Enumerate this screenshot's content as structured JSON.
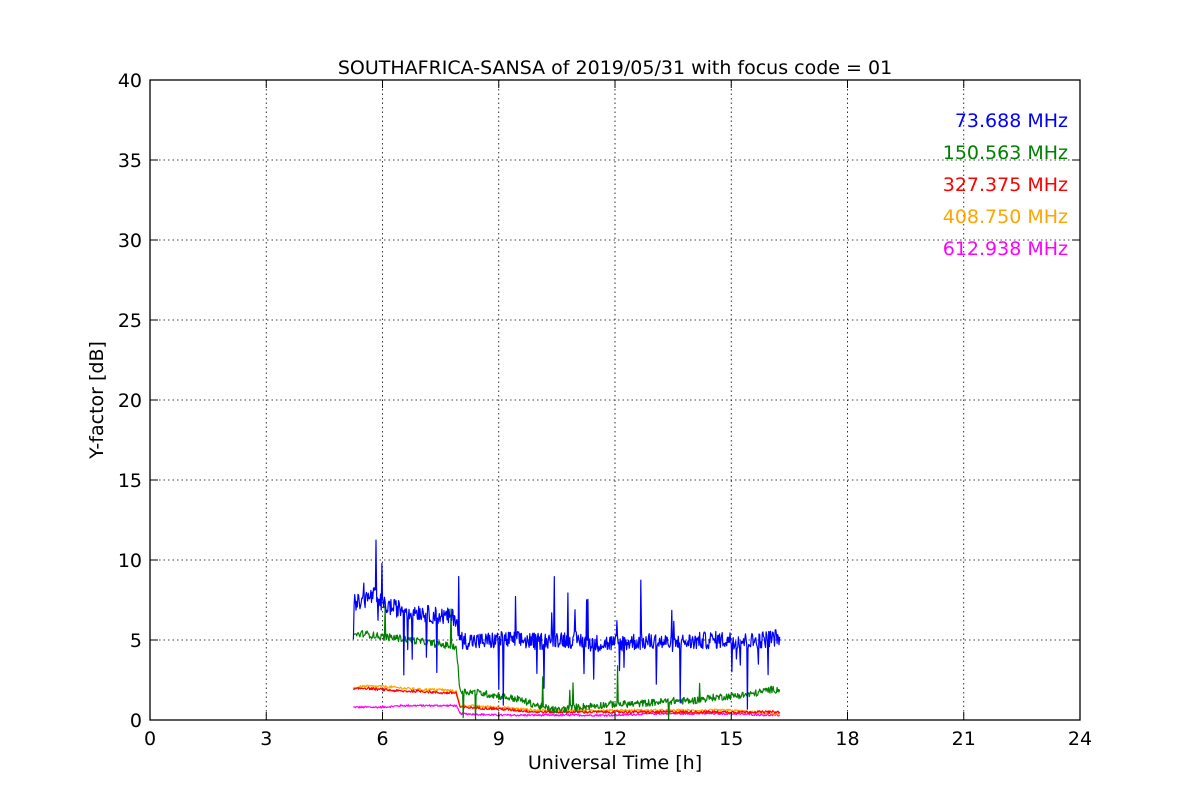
{
  "chart_data": {
    "type": "line",
    "title": "SOUTHAFRICA-SANSA of 2019/05/31 with focus code = 01",
    "xlabel": "Universal Time [h]",
    "ylabel": "Y-factor [dB]",
    "xlim": [
      0,
      24
    ],
    "ylim": [
      0,
      40
    ],
    "xticks": [
      0,
      3,
      6,
      9,
      12,
      15,
      18,
      21,
      24
    ],
    "yticks": [
      0,
      5,
      10,
      15,
      20,
      25,
      30,
      35,
      40
    ],
    "grid": true,
    "legend_position": "top-right",
    "series": [
      {
        "name": "73.688 MHz",
        "color": "#0000ff",
        "x": [
          5.25,
          5.4,
          5.6,
          5.8,
          6.0,
          6.3,
          6.6,
          6.9,
          7.2,
          7.5,
          7.9,
          8.0,
          8.5,
          9.0,
          9.5,
          10.0,
          10.5,
          11.0,
          11.5,
          12.0,
          12.5,
          13.0,
          13.5,
          14.0,
          14.5,
          15.0,
          15.5,
          16.0,
          16.25
        ],
        "y": [
          7.4,
          7.3,
          7.6,
          7.8,
          7.2,
          7.0,
          6.9,
          6.8,
          6.6,
          6.5,
          6.4,
          5.0,
          4.9,
          5.0,
          5.0,
          4.9,
          5.1,
          5.0,
          4.8,
          4.8,
          4.9,
          4.9,
          4.8,
          4.9,
          5.0,
          5.0,
          4.9,
          5.1,
          5.2
        ]
      },
      {
        "name": "150.563 MHz",
        "color": "#008000",
        "x": [
          5.25,
          5.5,
          6.0,
          6.5,
          7.0,
          7.5,
          7.9,
          8.0,
          8.5,
          9.0,
          9.5,
          10.0,
          10.5,
          11.0,
          11.5,
          12.0,
          12.5,
          13.0,
          13.5,
          14.0,
          14.5,
          15.0,
          15.5,
          16.0,
          16.25
        ],
        "y": [
          5.3,
          5.4,
          5.2,
          5.1,
          4.9,
          4.7,
          4.6,
          1.8,
          1.7,
          1.5,
          1.3,
          0.9,
          0.6,
          0.8,
          0.9,
          1.0,
          1.0,
          1.1,
          1.2,
          1.2,
          1.4,
          1.5,
          1.6,
          1.9,
          1.9
        ]
      },
      {
        "name": "327.375 MHz",
        "color": "#ff0000",
        "x": [
          5.25,
          5.5,
          6.0,
          6.5,
          7.0,
          7.5,
          7.9,
          8.0,
          9.0,
          10.0,
          11.0,
          12.0,
          13.0,
          14.0,
          15.0,
          16.0,
          16.25
        ],
        "y": [
          1.9,
          2.0,
          1.9,
          1.8,
          1.8,
          1.7,
          1.7,
          0.8,
          0.7,
          0.5,
          0.5,
          0.5,
          0.5,
          0.5,
          0.5,
          0.5,
          0.5
        ]
      },
      {
        "name": "408.750 MHz",
        "color": "#ffa500",
        "x": [
          5.25,
          5.5,
          6.0,
          6.5,
          7.0,
          7.5,
          7.9,
          8.0,
          9.0,
          10.0,
          11.0,
          12.0,
          13.0,
          14.0,
          15.0,
          16.0,
          16.25
        ],
        "y": [
          2.0,
          2.1,
          2.1,
          2.0,
          1.9,
          1.9,
          1.8,
          0.9,
          0.8,
          0.6,
          0.6,
          0.6,
          0.6,
          0.6,
          0.6,
          0.4,
          0.4
        ]
      },
      {
        "name": "612.938 MHz",
        "color": "#ff00ff",
        "x": [
          5.25,
          5.5,
          6.0,
          6.5,
          7.0,
          7.5,
          7.9,
          8.0,
          9.0,
          10.0,
          11.0,
          12.0,
          13.0,
          14.0,
          15.0,
          16.0,
          16.25
        ],
        "y": [
          0.8,
          0.8,
          0.8,
          0.9,
          0.9,
          0.9,
          0.9,
          0.4,
          0.3,
          0.3,
          0.3,
          0.3,
          0.4,
          0.4,
          0.4,
          0.3,
          0.3
        ]
      }
    ]
  }
}
